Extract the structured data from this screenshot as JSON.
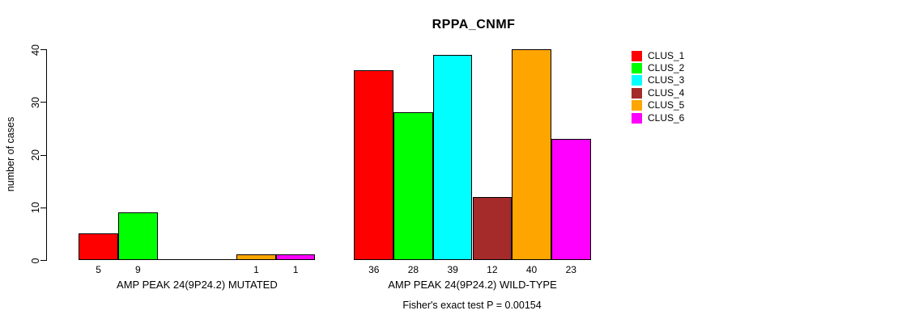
{
  "chart_data": {
    "type": "bar",
    "title": "RPPA_CNMF",
    "xlabel": "",
    "ylabel": "number of cases",
    "ylim": [
      0,
      40
    ],
    "yticks": [
      0,
      10,
      20,
      30,
      40
    ],
    "grid": false,
    "legend_position": "right",
    "categories": [
      "AMP PEAK 24(9P24.2) MUTATED",
      "AMP PEAK 24(9P24.2) WILD-TYPE"
    ],
    "series": [
      {
        "name": "CLUS_1",
        "color": "#ff0000",
        "values": [
          5,
          36
        ]
      },
      {
        "name": "CLUS_2",
        "color": "#00ff00",
        "values": [
          9,
          28
        ]
      },
      {
        "name": "CLUS_3",
        "color": "#00ffff",
        "values": [
          0,
          39
        ]
      },
      {
        "name": "CLUS_4",
        "color": "#a52a2a",
        "values": [
          0,
          12
        ]
      },
      {
        "name": "CLUS_5",
        "color": "#ffa500",
        "values": [
          1,
          40
        ]
      },
      {
        "name": "CLUS_6",
        "color": "#ff00ff",
        "values": [
          1,
          23
        ]
      }
    ],
    "bar_value_labels_shown_for_nonzero_only": true,
    "annotation": "Fisher's exact test P = 0.00154"
  }
}
